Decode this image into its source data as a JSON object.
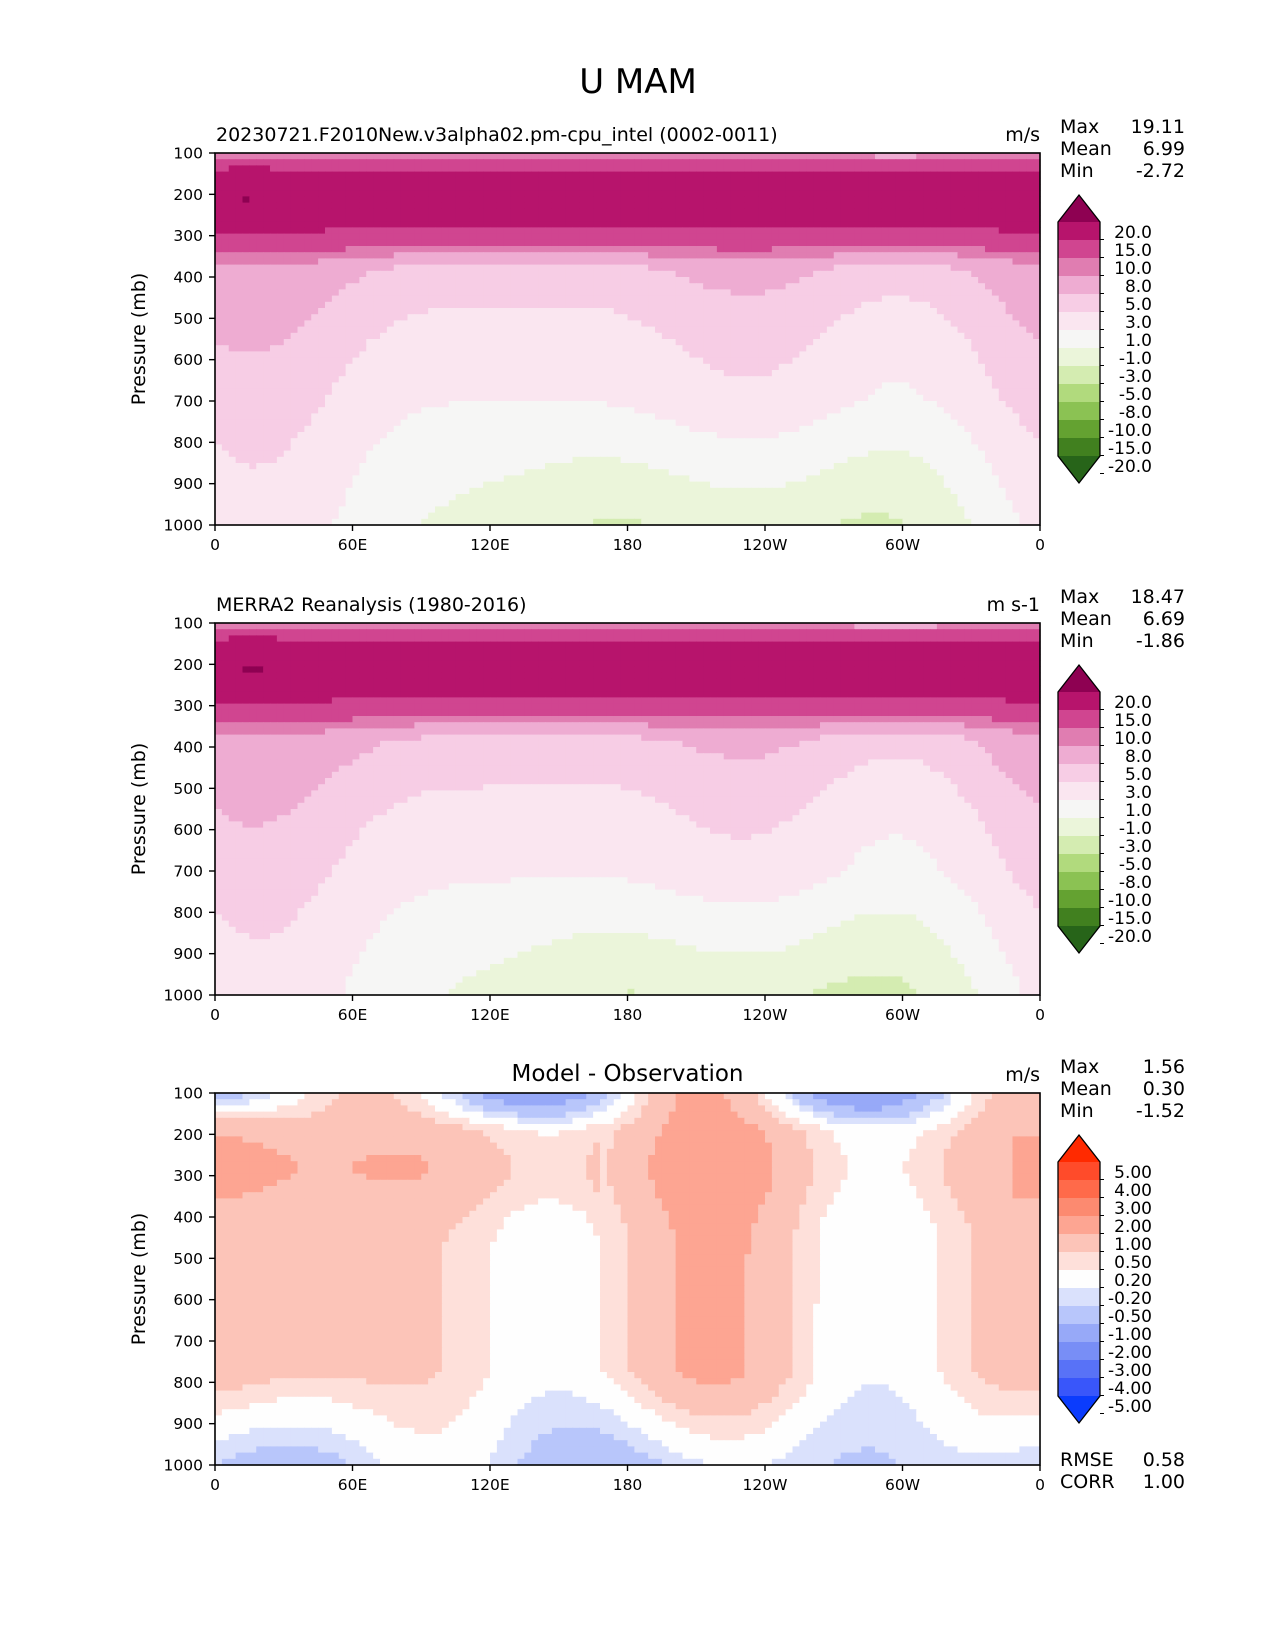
{
  "chart_data": {
    "type": "heatmap",
    "title": "U MAM",
    "panels": [
      {
        "id": "model",
        "title_left": "20230721.F2010New.v3alpha02.pm-cpu_intel (0002-0011)",
        "title_center": "",
        "units": "m/s",
        "stats": [
          {
            "label": "Max",
            "value": "19.11"
          },
          {
            "label": "Mean",
            "value": "6.99"
          },
          {
            "label": "Min",
            "value": "-2.72"
          }
        ],
        "extra_stats": [],
        "ylabel": "Pressure (mb)",
        "colormap": "pink-green",
        "field": "zonal-wind",
        "jet_shift": 0.0
      },
      {
        "id": "obs",
        "title_left": "MERRA2 Reanalysis (1980-2016)",
        "title_center": "",
        "units": "m s-1",
        "stats": [
          {
            "label": "Max",
            "value": "18.47"
          },
          {
            "label": "Mean",
            "value": "6.69"
          },
          {
            "label": "Min",
            "value": "-1.86"
          }
        ],
        "extra_stats": [],
        "ylabel": "Pressure (mb)",
        "colormap": "pink-green",
        "field": "zonal-wind",
        "jet_shift": -0.4
      },
      {
        "id": "diff",
        "title_left": "",
        "title_center": "Model - Observation",
        "units": "m/s",
        "stats": [
          {
            "label": "Max",
            "value": "1.56"
          },
          {
            "label": "Mean",
            "value": "0.30"
          },
          {
            "label": "Min",
            "value": "-1.52"
          }
        ],
        "extra_stats": [
          {
            "label": "RMSE",
            "value": "0.58"
          },
          {
            "label": "CORR",
            "value": "1.00"
          }
        ],
        "ylabel": "Pressure (mb)",
        "colormap": "red-blue",
        "field": "difference",
        "jet_shift": 0.0
      }
    ],
    "x_ticks": [
      "0",
      "60E",
      "120E",
      "180",
      "120W",
      "60W",
      "0"
    ],
    "x_range_deg": [
      0,
      360
    ],
    "y_ticks": [
      "100",
      "200",
      "300",
      "400",
      "500",
      "600",
      "700",
      "800",
      "900",
      "1000"
    ],
    "y_range_mb": [
      100,
      1000
    ],
    "y_inverted": true,
    "colorbars": {
      "pink-green": {
        "levels": [
          "20.0",
          "15.0",
          "10.0",
          "8.0",
          "5.0",
          "3.0",
          "1.0",
          "-1.0",
          "-3.0",
          "-5.0",
          "-8.0",
          "-10.0",
          "-15.0",
          "-20.0"
        ],
        "level_values": [
          20,
          15,
          10,
          8,
          5,
          3,
          1,
          -1,
          -3,
          -5,
          -8,
          -10,
          -15,
          -20
        ],
        "colors_top_to_bottom": [
          "#8e0152",
          "#b7146c",
          "#d04590",
          "#e07db1",
          "#eeacd2",
          "#f7cde5",
          "#fae6f0",
          "#f6f6f5",
          "#ebf5da",
          "#d4ecb1",
          "#b1da7d",
          "#8bc253",
          "#64a231",
          "#41801f",
          "#276419"
        ],
        "extend": "both"
      },
      "red-blue": {
        "levels": [
          "5.00",
          "4.00",
          "3.00",
          "2.00",
          "1.00",
          "0.50",
          "0.20",
          "-0.20",
          "-0.50",
          "-1.00",
          "-2.00",
          "-3.00",
          "-4.00",
          "-5.00"
        ],
        "level_values": [
          5,
          4,
          3,
          2,
          1,
          0.5,
          0.2,
          -0.2,
          -0.5,
          -1,
          -2,
          -3,
          -4,
          -5
        ],
        "colors_top_to_bottom": [
          "#ff2a00",
          "#ff4b2a",
          "#ff6a4a",
          "#fc8a70",
          "#fda592",
          "#fcc4b8",
          "#fee0da",
          "#fefefe",
          "#dae1fc",
          "#b8c6fb",
          "#97a9f8",
          "#788ef6",
          "#5872f7",
          "#3956fa",
          "#0b3cfd"
        ],
        "extend": "both"
      }
    }
  }
}
